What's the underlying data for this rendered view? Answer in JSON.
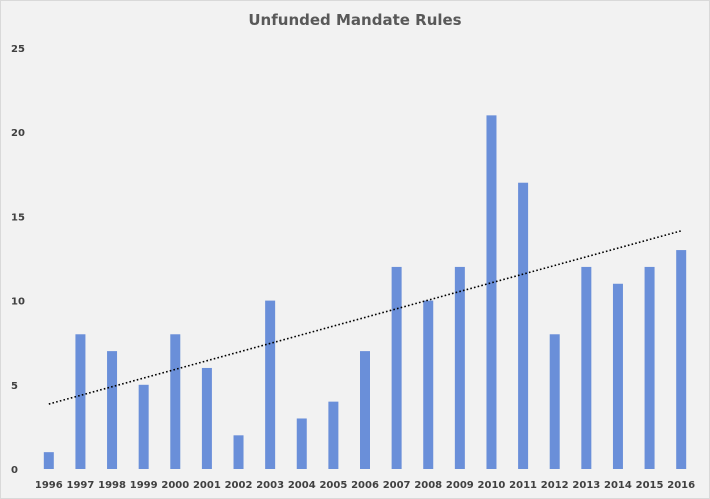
{
  "chart_data": {
    "type": "bar",
    "title": "Unfunded Mandate Rules",
    "xlabel": "",
    "ylabel": "",
    "categories": [
      "1996",
      "1997",
      "1998",
      "1999",
      "2000",
      "2001",
      "2002",
      "2003",
      "2004",
      "2005",
      "2006",
      "2007",
      "2008",
      "2009",
      "2010",
      "2011",
      "2012",
      "2013",
      "2014",
      "2015",
      "2016"
    ],
    "values": [
      1,
      8,
      7,
      5,
      8,
      6,
      2,
      10,
      3,
      4,
      7,
      12,
      10,
      12,
      21,
      17,
      8,
      12,
      11,
      12,
      13
    ],
    "ylim": [
      0,
      25
    ],
    "yticks": [
      0,
      5,
      10,
      15,
      20,
      25
    ],
    "grid": false,
    "legend": "none",
    "trendline": {
      "type": "linear",
      "style": "dotted",
      "color": "#000000"
    },
    "bar_color": "#6a8fd9"
  }
}
